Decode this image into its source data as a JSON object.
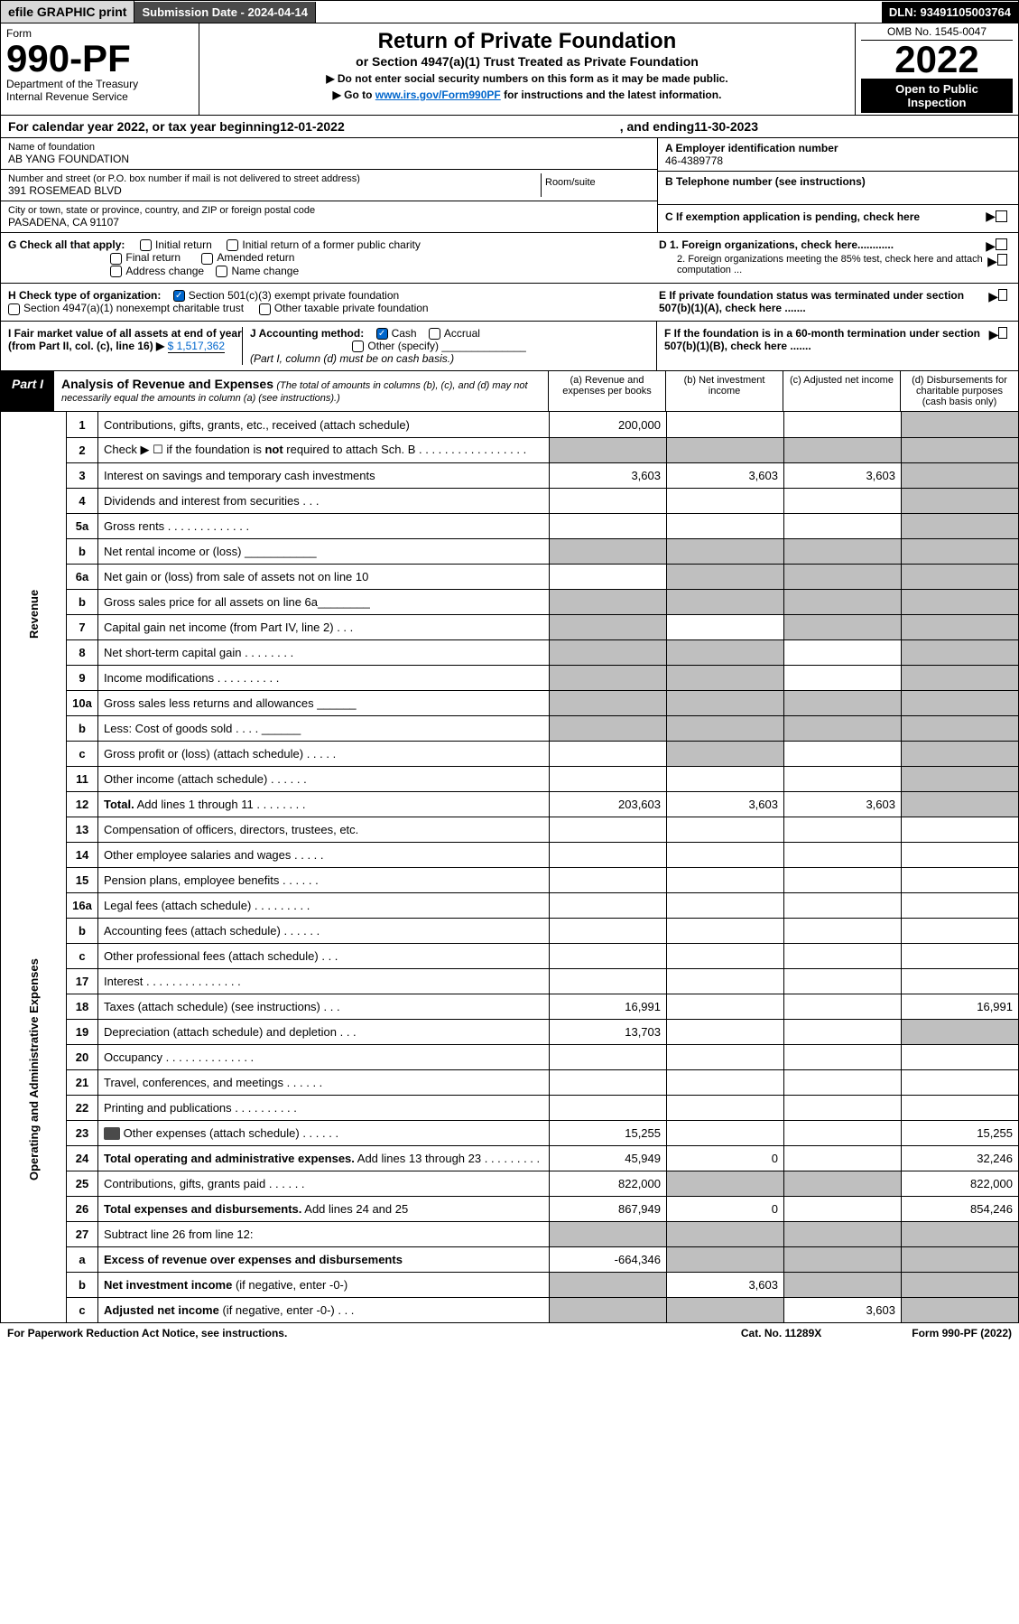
{
  "top": {
    "efile": "efile GRAPHIC print",
    "subdate_label": "Submission Date - ",
    "subdate": "2024-04-14",
    "dln_label": "DLN: ",
    "dln": "93491105003764"
  },
  "header": {
    "form_label": "Form",
    "form_num": "990-PF",
    "dept": "Department of the Treasury",
    "irs": "Internal Revenue Service",
    "title": "Return of Private Foundation",
    "subtitle": "or Section 4947(a)(1) Trust Treated as Private Foundation",
    "instr1": "▶ Do not enter social security numbers on this form as it may be made public.",
    "instr2_pre": "▶ Go to ",
    "instr2_link": "www.irs.gov/Form990PF",
    "instr2_post": " for instructions and the latest information.",
    "omb": "OMB No. 1545-0047",
    "year": "2022",
    "inspect": "Open to Public Inspection"
  },
  "cal": {
    "pre": "For calendar year 2022, or tax year beginning ",
    "begin": "12-01-2022",
    "mid": ", and ending ",
    "end": "11-30-2023"
  },
  "id": {
    "name_label": "Name of foundation",
    "name": "AB YANG FOUNDATION",
    "addr_label": "Number and street (or P.O. box number if mail is not delivered to street address)",
    "addr": "391 ROSEMEAD BLVD",
    "room_label": "Room/suite",
    "city_label": "City or town, state or province, country, and ZIP or foreign postal code",
    "city": "PASADENA, CA  91107",
    "a_label": "A Employer identification number",
    "a_val": "46-4389778",
    "b_label": "B Telephone number (see instructions)",
    "c_label": "C If exemption application is pending, check here",
    "d1": "D 1. Foreign organizations, check here............",
    "d2": "2. Foreign organizations meeting the 85% test, check here and attach computation ...",
    "e": "E  If private foundation status was terminated under section 507(b)(1)(A), check here .......",
    "f": "F  If the foundation is in a 60-month termination under section 507(b)(1)(B), check here .......",
    "g_label": "G Check all that apply:",
    "g_opts": [
      "Initial return",
      "Initial return of a former public charity",
      "Final return",
      "Amended return",
      "Address change",
      "Name change"
    ],
    "h_label": "H Check type of organization:",
    "h1": "Section 501(c)(3) exempt private foundation",
    "h2": "Section 4947(a)(1) nonexempt charitable trust",
    "h3": "Other taxable private foundation",
    "i_label": "I Fair market value of all assets at end of year (from Part II, col. (c), line 16) ▶",
    "i_val": "$  1,517,362",
    "j_label": "J Accounting method:",
    "j_cash": "Cash",
    "j_accrual": "Accrual",
    "j_other": "Other (specify)",
    "j_note": "(Part I, column (d) must be on cash basis.)"
  },
  "part1": {
    "label": "Part I",
    "title": "Analysis of Revenue and Expenses",
    "note": "(The total of amounts in columns (b), (c), and (d) may not necessarily equal the amounts in column (a) (see instructions).)",
    "cols": {
      "a": "(a)   Revenue and expenses per books",
      "b": "(b)   Net investment income",
      "c": "(c)   Adjusted net income",
      "d": "(d)   Disbursements for charitable purposes (cash basis only)"
    }
  },
  "side": {
    "revenue": "Revenue",
    "expenses": "Operating and Administrative Expenses"
  },
  "rows": [
    {
      "n": "1",
      "d": "Contributions, gifts, grants, etc., received (attach schedule)",
      "a": "200,000",
      "greyD": true
    },
    {
      "n": "2",
      "d": "Check ▶ ☐ if the foundation is <b>not</b> required to attach Sch. B   .  .  .  .  .  .  .  .  .  .  .  .  .  .  .  .  .",
      "greyA": true,
      "greyB": true,
      "greyC": true,
      "greyD": true
    },
    {
      "n": "3",
      "d": "Interest on savings and temporary cash investments",
      "a": "3,603",
      "b": "3,603",
      "c": "3,603",
      "greyD": true
    },
    {
      "n": "4",
      "d": "Dividends and interest from securities    .   .   .",
      "greyD": true
    },
    {
      "n": "5a",
      "d": "Gross rents   .   .   .   .   .   .   .   .   .   .   .   .   .",
      "greyD": true
    },
    {
      "n": "b",
      "d": "Net rental income or (loss)  ___________",
      "greyA": true,
      "greyB": true,
      "greyC": true,
      "greyD": true
    },
    {
      "n": "6a",
      "d": "Net gain or (loss) from sale of assets not on line 10",
      "greyB": true,
      "greyC": true,
      "greyD": true
    },
    {
      "n": "b",
      "d": "Gross sales price for all assets on line 6a________",
      "greyA": true,
      "greyB": true,
      "greyC": true,
      "greyD": true
    },
    {
      "n": "7",
      "d": "Capital gain net income (from Part IV, line 2)   .   .   .",
      "greyA": true,
      "greyC": true,
      "greyD": true
    },
    {
      "n": "8",
      "d": "Net short-term capital gain  .   .   .   .   .   .   .   .",
      "greyA": true,
      "greyB": true,
      "greyD": true
    },
    {
      "n": "9",
      "d": "Income modifications .   .   .   .   .   .   .   .   .   .",
      "greyA": true,
      "greyB": true,
      "greyD": true
    },
    {
      "n": "10a",
      "d": "Gross sales less returns and allowances   ______",
      "greyA": true,
      "greyB": true,
      "greyC": true,
      "greyD": true
    },
    {
      "n": "b",
      "d": "Less: Cost of goods sold   .   .   .   .   ______",
      "greyA": true,
      "greyB": true,
      "greyC": true,
      "greyD": true
    },
    {
      "n": "c",
      "d": "Gross profit or (loss) (attach schedule)   .   .   .   .   .",
      "greyB": true,
      "greyD": true
    },
    {
      "n": "11",
      "d": "Other income (attach schedule)   .   .   .   .   .   .",
      "greyD": true
    },
    {
      "n": "12",
      "d": "<b>Total.</b> Add lines 1 through 11   .   .   .   .   .   .   .   .",
      "a": "203,603",
      "b": "3,603",
      "c": "3,603",
      "greyD": true
    },
    {
      "n": "13",
      "d": "Compensation of officers, directors, trustees, etc."
    },
    {
      "n": "14",
      "d": "Other employee salaries and wages   .   .   .   .   ."
    },
    {
      "n": "15",
      "d": "Pension plans, employee benefits  .   .   .   .   .   ."
    },
    {
      "n": "16a",
      "d": "Legal fees (attach schedule) .   .   .   .   .   .   .   .   ."
    },
    {
      "n": "b",
      "d": "Accounting fees (attach schedule)  .   .   .   .   .   ."
    },
    {
      "n": "c",
      "d": "Other professional fees (attach schedule)   .   .   ."
    },
    {
      "n": "17",
      "d": "Interest  .   .   .   .   .   .   .   .   .   .   .   .   .   .   ."
    },
    {
      "n": "18",
      "d": "Taxes (attach schedule) (see instructions)   .   .   .",
      "a": "16,991",
      "dval": "16,991"
    },
    {
      "n": "19",
      "d": "Depreciation (attach schedule) and depletion   .   .   .",
      "a": "13,703",
      "greyD": true
    },
    {
      "n": "20",
      "d": "Occupancy .   .   .   .   .   .   .   .   .   .   .   .   .   ."
    },
    {
      "n": "21",
      "d": "Travel, conferences, and meetings  .   .   .   .   .   ."
    },
    {
      "n": "22",
      "d": "Printing and publications .   .   .   .   .   .   .   .   .   ."
    },
    {
      "n": "23",
      "d": "Other expenses (attach schedule)  .   .   .   .   .   .",
      "icon": true,
      "a": "15,255",
      "dval": "15,255"
    },
    {
      "n": "24",
      "d": "<b>Total operating and administrative expenses.</b> Add lines 13 through 23   .   .   .   .   .   .   .   .   .",
      "a": "45,949",
      "b": "0",
      "dval": "32,246"
    },
    {
      "n": "25",
      "d": "Contributions, gifts, grants paid   .   .   .   .   .   .",
      "a": "822,000",
      "greyB": true,
      "greyC": true,
      "dval": "822,000"
    },
    {
      "n": "26",
      "d": "<b>Total expenses and disbursements.</b> Add lines 24 and 25",
      "a": "867,949",
      "b": "0",
      "dval": "854,246"
    },
    {
      "n": "27",
      "d": "Subtract line 26 from line 12:",
      "greyA": true,
      "greyB": true,
      "greyC": true,
      "greyD": true
    },
    {
      "n": "a",
      "d": "<b>Excess of revenue over expenses and disbursements</b>",
      "a": "-664,346",
      "greyB": true,
      "greyC": true,
      "greyD": true
    },
    {
      "n": "b",
      "d": "<b>Net investment income</b> (if negative, enter -0-)",
      "greyA": true,
      "b": "3,603",
      "greyC": true,
      "greyD": true
    },
    {
      "n": "c",
      "d": "<b>Adjusted net income</b> (if negative, enter -0-)   .   .   .",
      "greyA": true,
      "greyB": true,
      "c": "3,603",
      "greyD": true
    }
  ],
  "footer": {
    "left": "For Paperwork Reduction Act Notice, see instructions.",
    "mid": "Cat. No. 11289X",
    "right": "Form 990-PF (2022)"
  }
}
